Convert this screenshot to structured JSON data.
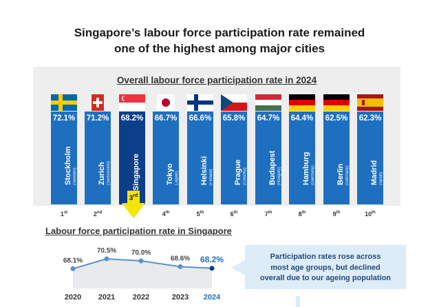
{
  "title_line1": "Singapore’s labour force participation rate remained",
  "title_line2": "one of the highest among major cities",
  "highlight_rank": "3rd",
  "callout": {
    "line1": "Participation rates rose across",
    "line2": "most age groups, but declined",
    "line3": "overall due to our ageing population"
  },
  "colors": {
    "bar": "#1f6fc1",
    "highlight_bar": "#0c3f8a",
    "line": "#5b8fc9",
    "arrow": "#f5e600"
  },
  "chart_data": [
    {
      "type": "bar",
      "title": "Overall labour force participation rate in 2024",
      "categories": [
        "Stockholm",
        "Zurich",
        "Singapore",
        "Tokyo",
        "Helsinki",
        "Prague",
        "Budapest",
        "Hamburg",
        "Berlin",
        "Madrid"
      ],
      "countries": [
        "(Sweden)",
        "(Switzerland)",
        "",
        "(Japan)",
        "(Finland)",
        "(Czechia)",
        "(Hungary)",
        "(Germany)",
        "(Germany)",
        "(Spain)"
      ],
      "values": [
        72.1,
        71.2,
        68.2,
        66.7,
        66.6,
        65.8,
        64.7,
        64.4,
        62.5,
        62.3
      ],
      "value_labels": [
        "72.1%",
        "71.2%",
        "68.2%",
        "66.7%",
        "66.6%",
        "65.8%",
        "64.7%",
        "64.4%",
        "62.5%",
        "62.3%"
      ],
      "ranks": [
        "1",
        "2",
        "3",
        "4",
        "5",
        "6",
        "7",
        "8",
        "9",
        "10"
      ],
      "rank_suffixes": [
        "st",
        "nd",
        "rd",
        "th",
        "th",
        "th",
        "th",
        "th",
        "th",
        "th"
      ],
      "flags": [
        "sweden-flag",
        "switzerland-flag",
        "singapore-flag",
        "japan-flag",
        "finland-flag",
        "czechia-flag",
        "hungary-flag",
        "germany-flag",
        "germany-flag",
        "spain-flag"
      ],
      "highlight": "Singapore"
    },
    {
      "type": "line",
      "title": "Labour force participation rate in Singapore",
      "x": [
        "2020",
        "2021",
        "2022",
        "2023",
        "2024"
      ],
      "values": [
        68.1,
        70.5,
        70.0,
        68.6,
        68.2
      ],
      "value_labels": [
        "68.1%",
        "70.5%",
        "70.0%",
        "68.6%",
        "68.2%"
      ],
      "highlight": "2024"
    }
  ]
}
